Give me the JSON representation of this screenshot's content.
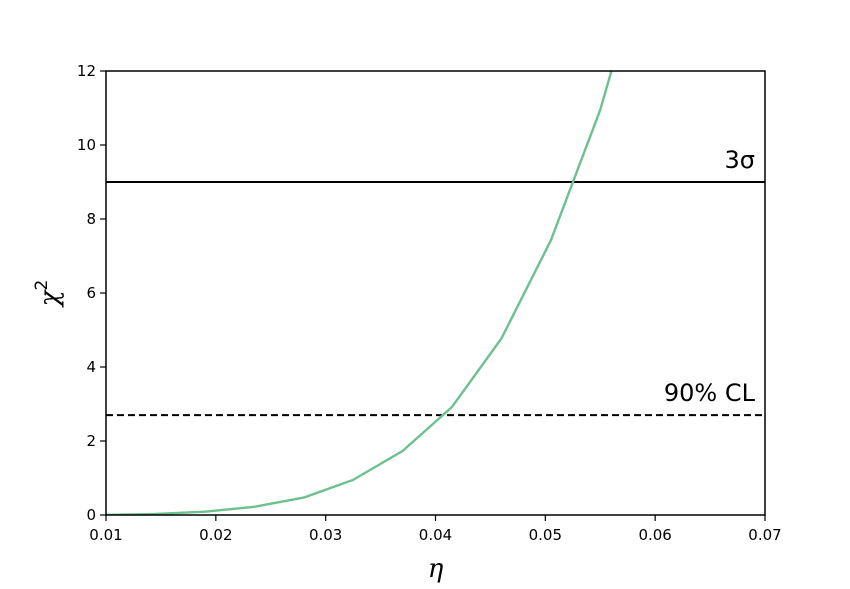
{
  "chart_data": {
    "type": "line",
    "xlabel": "η",
    "ylabel": "χ",
    "ylabel_superscript": "2",
    "xlim": [
      0.01,
      0.07
    ],
    "ylim": [
      0,
      12
    ],
    "xticks": [
      "0.01",
      "0.02",
      "0.03",
      "0.04",
      "0.05",
      "0.06",
      "0.07"
    ],
    "yticks": [
      "0",
      "2",
      "4",
      "6",
      "8",
      "10",
      "12"
    ],
    "grid": false,
    "series": [
      {
        "color": "#6cc18f",
        "x": [
          0.01,
          0.0145,
          0.019,
          0.0235,
          0.028,
          0.0325,
          0.037,
          0.0415,
          0.046,
          0.0505,
          0.055,
          0.0565
        ],
        "y": [
          0.0,
          0.03,
          0.09,
          0.22,
          0.47,
          0.95,
          1.73,
          2.92,
          4.77,
          7.42,
          10.95,
          12.5
        ]
      }
    ],
    "reference_lines": [
      {
        "label": "3σ",
        "y": 9.0,
        "style": "solid",
        "color": "#000000"
      },
      {
        "label": "90% CL",
        "y": 2.7,
        "style": "dashed",
        "color": "#000000"
      }
    ]
  }
}
